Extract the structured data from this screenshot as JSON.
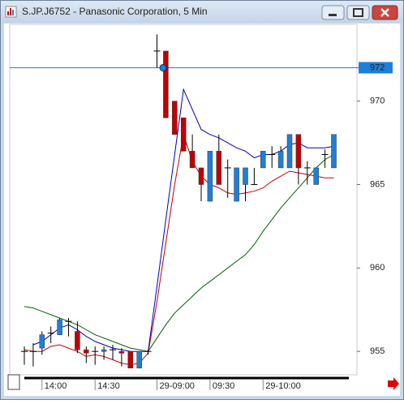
{
  "chart_data": {
    "type": "candlestick",
    "title": "S.JP.J6752 - Panasonic Corporation, 5 Min",
    "categories": [
      null,
      null,
      "14:00",
      null,
      null,
      null,
      null,
      null,
      "14:30",
      null,
      null,
      null,
      null,
      null,
      null,
      "29-09:00",
      null,
      null,
      null,
      null,
      null,
      "09:30",
      null,
      null,
      null,
      null,
      null,
      "29-10:00",
      null,
      null,
      null,
      null,
      null,
      null,
      null,
      null
    ],
    "open": [
      955,
      955,
      955.2,
      956.1,
      956,
      956.8,
      956.2,
      955.1,
      955,
      955,
      955.1,
      955,
      955,
      954,
      955,
      973,
      973,
      970,
      969,
      967,
      966,
      964,
      967,
      966,
      964,
      965,
      965,
      966,
      966.8,
      966,
      966,
      968,
      966,
      965,
      966.8,
      966
    ],
    "high": [
      955.3,
      955.5,
      956.2,
      956.5,
      957,
      957,
      956.8,
      955.3,
      955.3,
      955.3,
      955.4,
      955.2,
      955,
      955,
      955.1,
      974,
      973,
      970,
      969,
      968,
      966,
      967,
      968,
      966.5,
      966,
      966,
      966,
      967,
      967.3,
      967.3,
      968,
      968,
      966.4,
      966,
      967.1,
      968
    ],
    "low": [
      954.2,
      954.1,
      954.8,
      955.5,
      956,
      955.9,
      954.9,
      954.3,
      954.2,
      954.5,
      954.5,
      954.1,
      954,
      954,
      954.8,
      972,
      969,
      968,
      967,
      966,
      964,
      964,
      965,
      964.2,
      964,
      964,
      965,
      966,
      966,
      966,
      966,
      965,
      965,
      965,
      966,
      966
    ],
    "close": [
      955,
      955,
      956,
      956.1,
      956.9,
      956.8,
      955.1,
      954.9,
      955,
      955.1,
      955.1,
      954.9,
      954,
      955,
      955,
      973,
      969,
      968,
      967,
      966,
      965,
      967,
      965,
      966,
      966,
      966,
      965,
      967,
      966.8,
      967,
      968,
      966,
      966,
      966,
      966.8,
      968
    ],
    "up_color": "#1e7fd8",
    "down_color": "#c00000",
    "series": [
      {
        "color": "#0000c0",
        "values": [
          null,
          955.4,
          955.6,
          956,
          956.4,
          956.6,
          956.3,
          955.9,
          955.6,
          955.4,
          955.2,
          955.1,
          955,
          955,
          955,
          958.9,
          962.9,
          966.8,
          970.7,
          969.5,
          968.3,
          968,
          967.8,
          967.5,
          967.2,
          967,
          966.6,
          966.8,
          966.8,
          967,
          967.4,
          967.5,
          967.2,
          967.2,
          967.2,
          967.3
        ]
      },
      {
        "color": "#c00000",
        "values": [
          955.1,
          955,
          955,
          955.3,
          955.4,
          955.2,
          955,
          954.7,
          954.8,
          954.7,
          954.5,
          954.3,
          954.2,
          954.3,
          954.9,
          958,
          961.5,
          965,
          968,
          966.4,
          965.5,
          965,
          964.8,
          964.5,
          964.4,
          964.5,
          964.6,
          964.8,
          965.2,
          965.5,
          965.8,
          965.7,
          965.6,
          965.5,
          965.4,
          965.4
        ]
      },
      {
        "color": "#006000",
        "values": [
          957.7,
          957.6,
          957.4,
          957.2,
          957,
          956.8,
          956.6,
          956.3,
          956,
          955.8,
          955.6,
          955.4,
          955.2,
          955.1,
          955,
          955.8,
          956.6,
          957.3,
          957.8,
          958.3,
          958.8,
          959.2,
          959.6,
          960,
          960.4,
          960.8,
          961.4,
          962.2,
          962.9,
          963.6,
          964.2,
          964.8,
          965.4,
          966,
          966.5,
          966.8
        ]
      }
    ],
    "ylim": [
      953.6,
      974.6
    ],
    "yticks": [
      955,
      960,
      965,
      970
    ],
    "price_line": 972,
    "price_line_color": "#1e7fd8"
  }
}
